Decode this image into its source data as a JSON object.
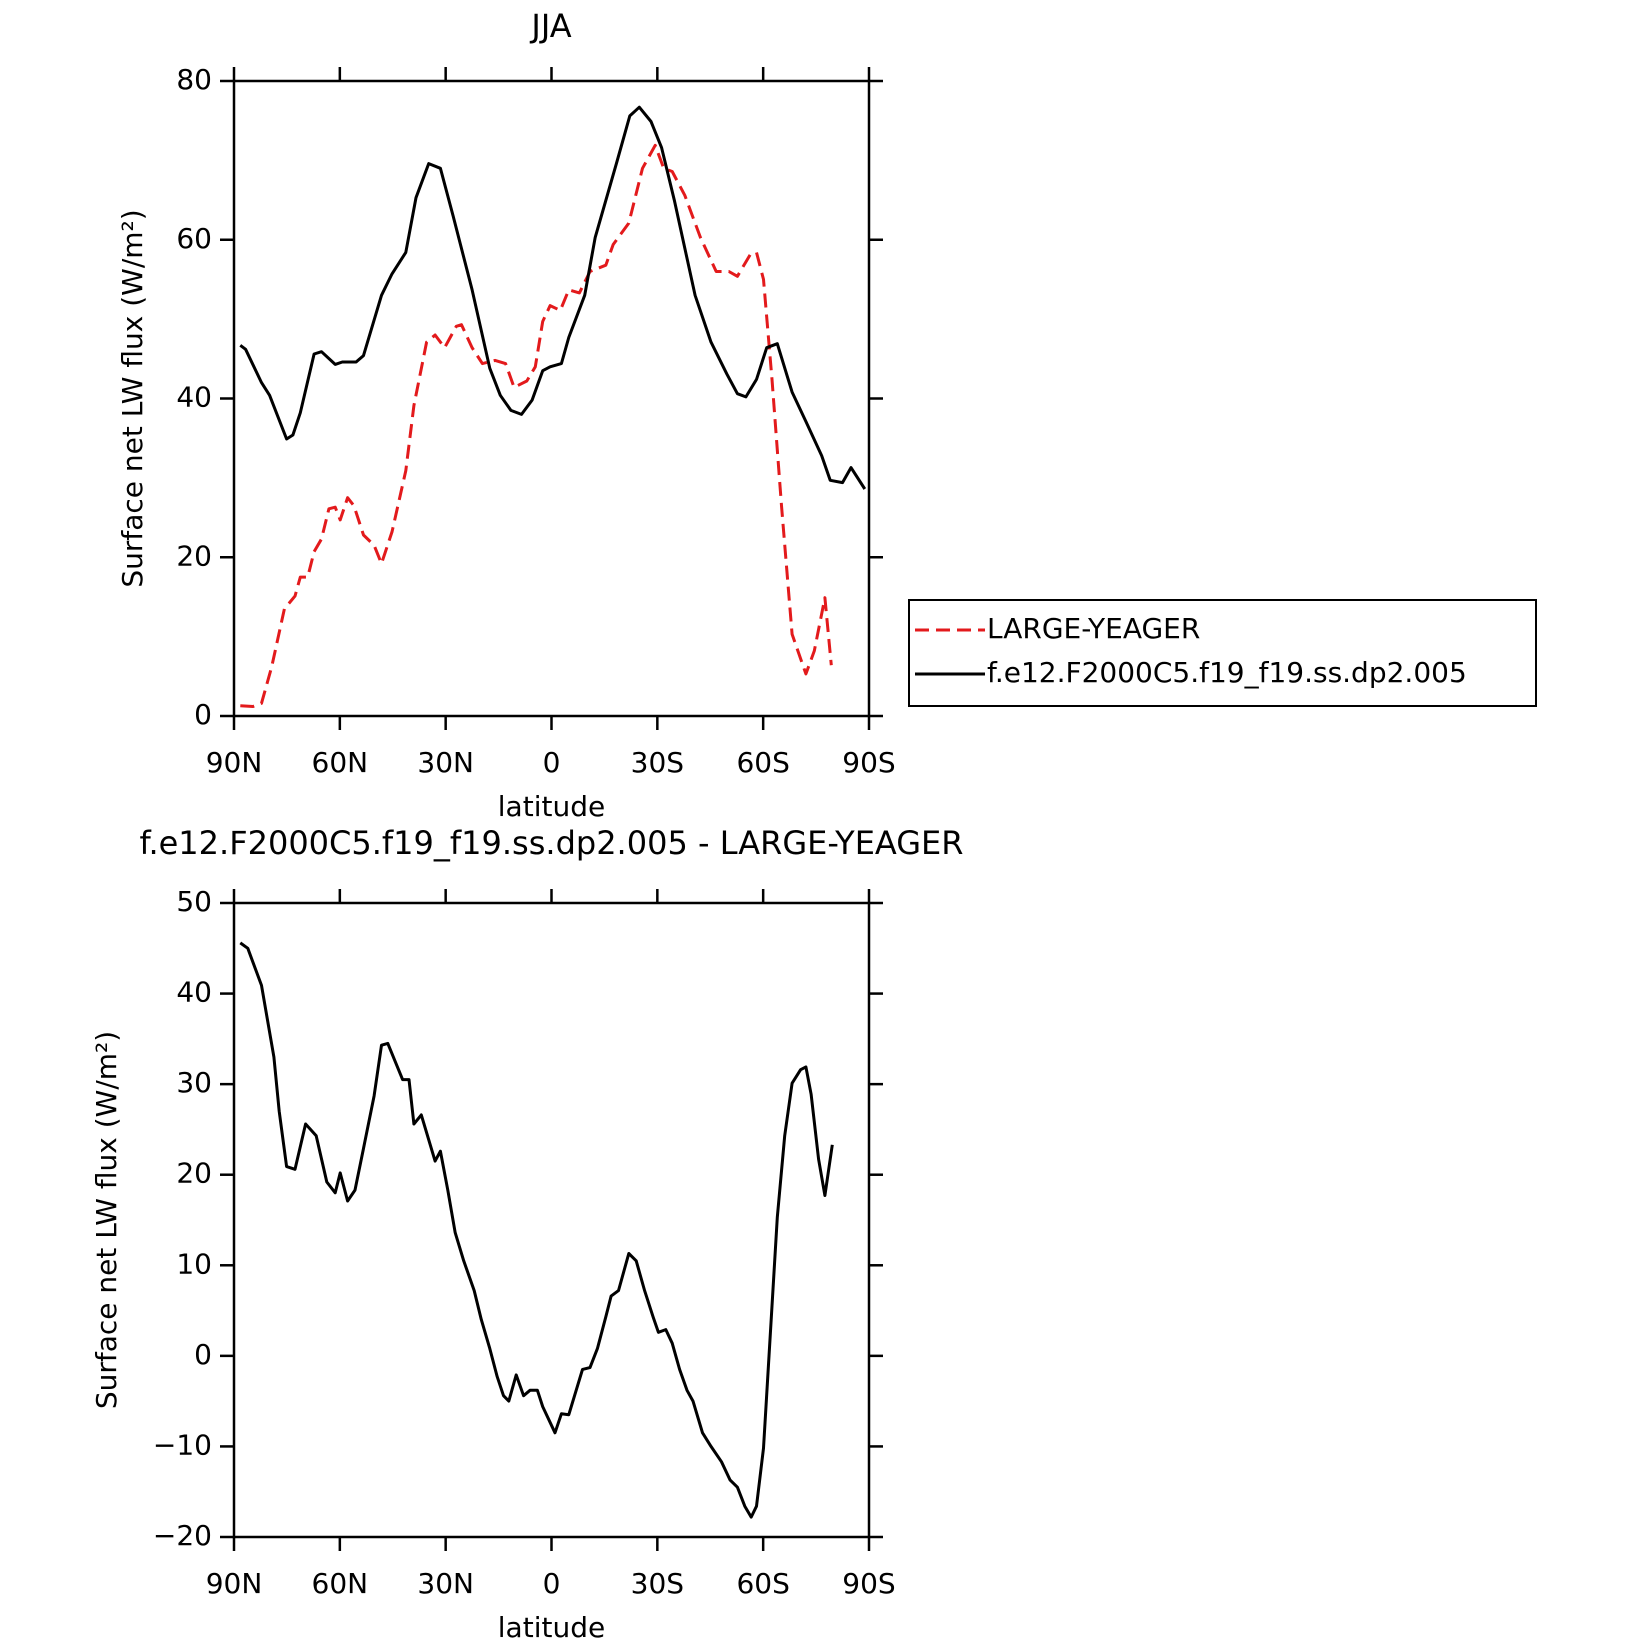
{
  "chart_data": [
    {
      "type": "line",
      "title": "JJA",
      "xlabel": "latitude",
      "ylabel": "Surface net LW flux (W/m²)",
      "xlim": [
        90,
        -90
      ],
      "xticks": [
        {
          "value": 90,
          "label": "90N"
        },
        {
          "value": 60,
          "label": "60N"
        },
        {
          "value": 30,
          "label": "30N"
        },
        0,
        {
          "value": -30,
          "label": "30S"
        },
        {
          "value": -60,
          "label": "60S"
        },
        {
          "value": -90,
          "label": "90S"
        }
      ],
      "ylim": [
        0,
        80
      ],
      "yticks": [
        0,
        20,
        40,
        60,
        80
      ],
      "legend": "right",
      "series": [
        {
          "name": "LARGE-YEAGER",
          "color": "#e31a1c",
          "dash": true,
          "x": [
            88.2,
            84.6,
            82.2,
            79.3,
            75.7,
            72.7,
            71.2,
            69.1,
            67.3,
            65.2,
            63.1,
            61.3,
            59.9,
            57.8,
            56,
            53.3,
            50.3,
            48.2,
            45.2,
            41.3,
            39,
            35.4,
            33,
            30.3,
            27,
            25.5,
            22.5,
            19.6,
            16,
            13,
            10.6,
            7,
            4.6,
            2.5,
            0.4,
            -2.5,
            -4.9,
            -7.9,
            -10.9,
            -15.4,
            -17.5,
            -21.9,
            -25.8,
            -29.4,
            -31.8,
            -34.2,
            -37.8,
            -42.2,
            -46.7,
            -50.3,
            -52.7,
            -56.3,
            -58.1,
            -60.1,
            -62.5,
            -65.2,
            -68.2,
            -72.1,
            -74.5,
            -77.5,
            -79.3
          ],
          "values": [
            1.3,
            1.2,
            1.6,
            6.2,
            13.5,
            15.1,
            17.5,
            17.5,
            20.7,
            22.3,
            26.1,
            26.3,
            24.7,
            27.5,
            26.5,
            22.8,
            21.5,
            19.2,
            23.2,
            30.9,
            39.1,
            47.1,
            48,
            46.4,
            49.1,
            49.3,
            46.4,
            44.4,
            44.8,
            44.4,
            41.4,
            42.2,
            44,
            49.7,
            51.7,
            51.1,
            53.7,
            53.3,
            56,
            56.8,
            59.4,
            62.1,
            69,
            71.9,
            69,
            68.6,
            65.6,
            60.3,
            56,
            56,
            55.4,
            58.1,
            58.4,
            55,
            42.4,
            26.5,
            10.3,
            5.3,
            8.2,
            14.9,
            6.4
          ]
        },
        {
          "name": "f.e12.F2000C5.f19_f19.ss.dp2.005",
          "color": "#000000",
          "dash": false,
          "x": [
            88.2,
            86.7,
            82.2,
            79.9,
            75.1,
            73.3,
            71.2,
            67.3,
            65.2,
            61.3,
            59.3,
            55.4,
            53.3,
            48.2,
            45.2,
            41.3,
            38.4,
            34.8,
            31.5,
            27.9,
            22.5,
            17.5,
            14.5,
            11.5,
            8.5,
            5.5,
            2.5,
            0.4,
            -2.8,
            -4.9,
            -9.4,
            -12.4,
            -18.4,
            -22.2,
            -24.9,
            -28.2,
            -31.2,
            -34.8,
            -40.7,
            -45.2,
            -49.7,
            -52.7,
            -55.1,
            -58.1,
            -61,
            -64,
            -68.2,
            -72.1,
            -76.6,
            -79,
            -82.5,
            -84.9,
            -88.8
          ],
          "values": [
            46.7,
            46.2,
            42,
            40.4,
            34.9,
            35.4,
            38.2,
            45.6,
            45.9,
            44.3,
            44.6,
            44.6,
            45.4,
            53,
            55.7,
            58.4,
            65.3,
            69.6,
            69,
            63,
            53.7,
            43.8,
            40.4,
            38.5,
            38,
            39.8,
            43.5,
            44,
            44.4,
            47.7,
            53,
            60.3,
            69.6,
            75.6,
            76.7,
            74.9,
            71.6,
            65,
            53,
            47.1,
            43.1,
            40.6,
            40.2,
            42.4,
            46.4,
            46.9,
            40.8,
            37.1,
            32.8,
            29.7,
            29.4,
            31.3,
            28.6
          ]
        }
      ]
    },
    {
      "type": "line",
      "title": "f.e12.F2000C5.f19_f19.ss.dp2.005 - LARGE-YEAGER",
      "xlabel": "latitude",
      "ylabel": "Surface net LW flux (W/m²)",
      "xlim": [
        90,
        -90
      ],
      "xticks": [
        {
          "value": 90,
          "label": "90N"
        },
        {
          "value": 60,
          "label": "60N"
        },
        {
          "value": 30,
          "label": "30N"
        },
        0,
        {
          "value": -30,
          "label": "30S"
        },
        {
          "value": -60,
          "label": "60S"
        },
        {
          "value": -90,
          "label": "90S"
        }
      ],
      "ylim": [
        -20,
        50
      ],
      "yticks": [
        {
          "value": -20,
          "label": "−20"
        },
        {
          "value": -10,
          "label": "−10"
        },
        0,
        10,
        20,
        30,
        40,
        50
      ],
      "series": [
        {
          "color": "#000000",
          "dash": false,
          "x": [
            88.2,
            86.1,
            82.2,
            78.7,
            77.2,
            75.1,
            72.7,
            69.7,
            66.7,
            63.7,
            61.3,
            59.9,
            57.8,
            55.7,
            53.3,
            50.3,
            48.2,
            46.4,
            42.2,
            40.4,
            39,
            36.9,
            33,
            31.5,
            29.4,
            27.3,
            24.9,
            21.9,
            19.9,
            17.5,
            15.4,
            13.6,
            12.1,
            10,
            7.9,
            6.1,
            4,
            2.5,
            -1,
            -2.8,
            -4.9,
            -8.8,
            -10.9,
            -13,
            -15.4,
            -16.9,
            -19,
            -21.9,
            -24,
            -26.4,
            -28.8,
            -30.3,
            -32.4,
            -34.2,
            -36.3,
            -38.4,
            -40.1,
            -42.8,
            -45.2,
            -48.2,
            -50.6,
            -52.7,
            -54.8,
            -56.6,
            -58.1,
            -60.1,
            -64,
            -66.1,
            -68.2,
            -70.6,
            -72.1,
            -73.6,
            -75.7,
            -77.5,
            -79.6
          ],
          "values": [
            45.6,
            45,
            40.9,
            33,
            27,
            20.9,
            20.6,
            25.6,
            24.3,
            19.2,
            18,
            20.2,
            17.1,
            18.3,
            22.9,
            28.7,
            34.3,
            34.5,
            30.5,
            30.5,
            25.6,
            26.6,
            21.5,
            22.6,
            18.3,
            13.6,
            10.5,
            7.2,
            4,
            0.8,
            -2.3,
            -4.4,
            -5,
            -2.1,
            -4.4,
            -3.8,
            -3.8,
            -5.6,
            -8.5,
            -6.4,
            -6.5,
            -1.5,
            -1.3,
            0.8,
            4.3,
            6.6,
            7.2,
            11.3,
            10.5,
            7.2,
            4.3,
            2.6,
            2.9,
            1.4,
            -1.5,
            -3.8,
            -5,
            -8.5,
            -10,
            -11.7,
            -13.7,
            -14.5,
            -16.6,
            -17.8,
            -16.6,
            -10.2,
            15.3,
            24.3,
            30.1,
            31.6,
            31.9,
            28.9,
            21.7,
            17.7,
            23.3
          ]
        }
      ]
    }
  ]
}
